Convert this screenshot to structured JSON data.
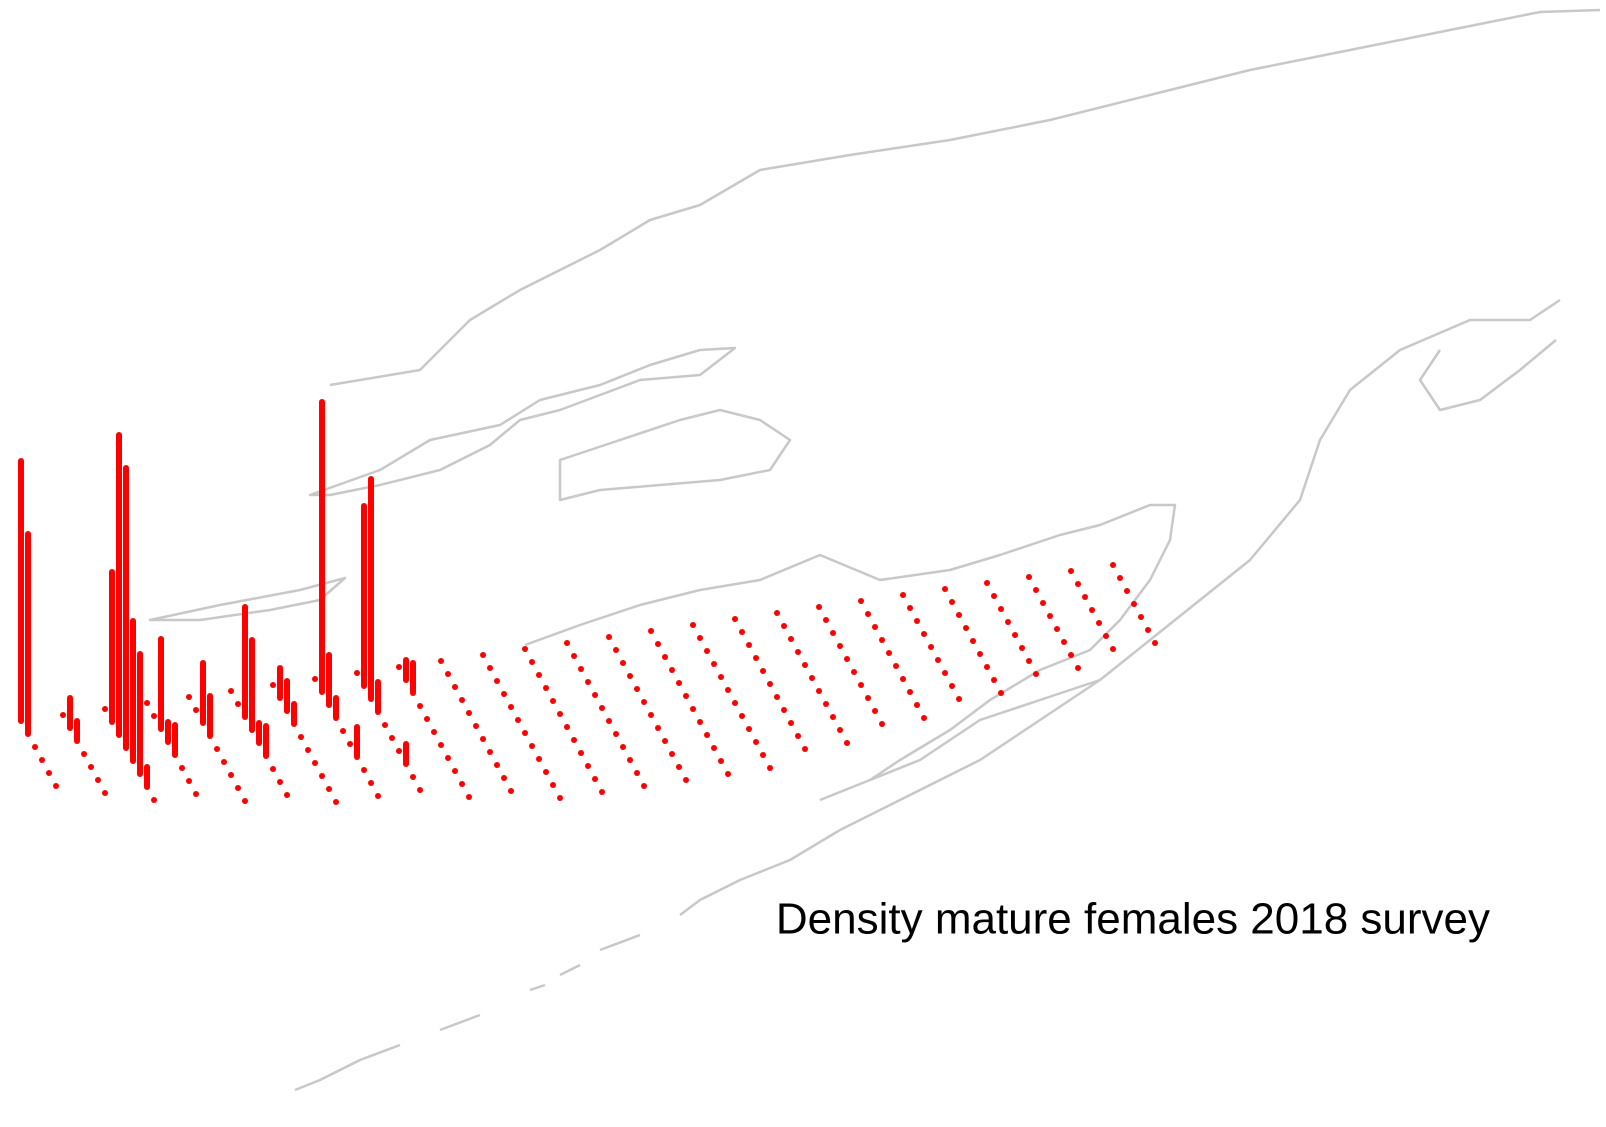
{
  "chart_data": {
    "type": "bar3d-map",
    "title": "Density mature females 2018 survey",
    "color": "#ff0000",
    "density": [
      [
        26,
        20,
        0,
        0,
        0,
        0
      ],
      [
        0,
        3,
        2,
        0,
        0,
        0,
        0
      ],
      [
        0,
        15,
        30,
        28,
        14,
        12,
        2,
        0
      ],
      [
        0,
        0,
        9,
        2,
        3,
        0,
        0,
        0
      ],
      [
        0,
        0,
        6,
        4,
        0,
        0,
        0,
        0,
        0
      ],
      [
        0,
        0,
        11,
        9,
        2,
        3,
        0,
        0,
        0
      ],
      [
        0,
        3,
        3,
        2,
        0,
        0,
        0,
        0,
        0,
        0
      ],
      [
        0,
        29,
        5,
        2,
        0,
        0,
        3,
        0,
        0,
        0
      ],
      [
        0,
        18,
        22,
        3,
        0,
        0,
        0,
        2,
        0,
        0
      ],
      [
        0,
        2,
        3,
        0,
        0,
        0,
        0,
        0,
        0,
        0,
        0
      ],
      [
        0,
        0,
        0,
        0,
        0,
        0,
        0,
        0,
        0,
        0,
        0
      ],
      [
        0,
        0,
        0,
        0,
        0,
        0,
        0,
        0,
        0,
        0,
        0,
        0
      ],
      [
        0,
        0,
        0,
        0,
        0,
        0,
        0,
        0,
        0,
        0,
        0,
        0
      ],
      [
        0,
        0,
        0,
        0,
        0,
        0,
        0,
        0,
        0,
        0,
        0,
        0
      ],
      [
        0,
        0,
        0,
        0,
        0,
        0,
        0,
        0,
        0,
        0,
        0,
        0
      ],
      [
        0,
        0,
        0,
        0,
        0,
        0,
        0,
        0,
        0,
        0,
        0,
        0
      ],
      [
        0,
        0,
        0,
        0,
        0,
        0,
        0,
        0,
        0,
        0,
        0,
        0
      ],
      [
        0,
        0,
        0,
        0,
        0,
        0,
        0,
        0,
        0,
        0,
        0
      ],
      [
        0,
        0,
        0,
        0,
        0,
        0,
        0,
        0,
        0,
        0,
        0
      ],
      [
        0,
        0,
        0,
        0,
        0,
        0,
        0,
        0,
        0,
        0
      ],
      [
        0,
        0,
        0,
        0,
        0,
        0,
        0,
        0,
        0,
        0
      ],
      [
        0,
        0,
        0,
        0,
        0,
        0,
        0,
        0,
        0
      ],
      [
        0,
        0,
        0,
        0,
        0,
        0,
        0,
        0,
        0
      ],
      [
        0,
        0,
        0,
        0,
        0,
        0,
        0,
        0
      ],
      [
        0,
        0,
        0,
        0,
        0,
        0,
        0,
        0
      ],
      [
        0,
        0,
        0,
        0,
        0,
        0,
        0
      ],
      [
        0,
        0,
        0,
        0,
        0,
        0,
        0
      ]
    ]
  }
}
